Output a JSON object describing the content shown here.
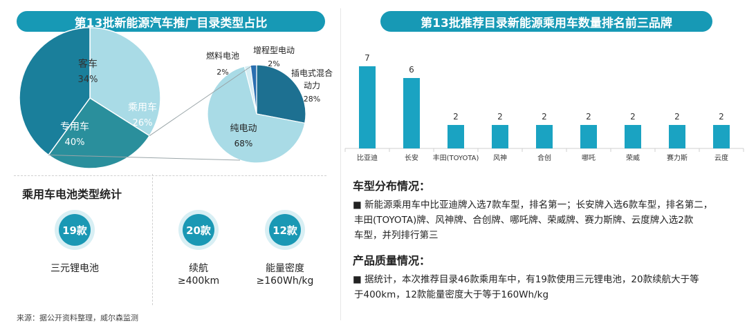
{
  "left_banner": "第13批新能源汽车推广目录类型占比",
  "right_banner": "第13批推荐目录新能源乘用车数量排名前三品牌",
  "battery_section": {
    "title": "乘用车电池类型统计",
    "items": [
      {
        "count": "19款",
        "label_lines": [
          "三元锂电池"
        ]
      },
      {
        "count": "20款",
        "label_lines": [
          "续航",
          "≥400km"
        ]
      },
      {
        "count": "12款",
        "label_lines": [
          "能量密度",
          "≥160Wh/kg"
        ]
      }
    ]
  },
  "model_dist": {
    "title": "车型分布情况：",
    "lines": [
      "■ 新能源乘用车中比亚迪牌入选7款车型，排名第一；长安牌入选6款车型，排名第二，",
      "丰田(TOYOTA)牌、风神牌、合创牌、哪吒牌、荣威牌、赛力斯牌、云度牌入选2款",
      "车型，并列排行第三"
    ]
  },
  "quality": {
    "title": "产品质量情况：",
    "lines": [
      "■ 据统计，本次推荐目录46款乘用车中，有19款使用三元锂电池，20款续航大于等",
      "于400km，12款能量密度大于等于160Wh/kg"
    ]
  },
  "source": "来源：据公开资料整理，威尔森监测",
  "colors": {
    "banner": "#1799b5",
    "teal_dark": "#1a7f9b",
    "teal_mid": "#2a8f9c",
    "teal_light": "#a9dbe6",
    "bar": "#1aa3c2",
    "circle": "#1a98b4"
  },
  "chart_data": [
    {
      "type": "pie",
      "title": "第13批新能源汽车推广目录类型占比",
      "slices": [
        {
          "label": "客车",
          "value": 34,
          "display": "34%"
        },
        {
          "label": "乘用车",
          "value": 26,
          "display": "26%"
        },
        {
          "label": "专用车",
          "value": 40,
          "display": "40%"
        }
      ],
      "breakdown_of": "乘用车",
      "breakdown": [
        {
          "label": "插电式混合动力",
          "label_lines": [
            "插电式混合",
            "动力"
          ],
          "value": 28,
          "display": "28%"
        },
        {
          "label": "纯电动",
          "value": 68,
          "display": "68%"
        },
        {
          "label": "燃料电池",
          "value": 2,
          "display": "2%"
        },
        {
          "label": "增程型电动",
          "value": 2,
          "display": "2%"
        }
      ]
    },
    {
      "type": "bar",
      "title": "第13批推荐目录新能源乘用车数量排名前三品牌",
      "categories": [
        "比亚迪",
        "长安",
        "丰田(TOYOTA)",
        "风神",
        "合创",
        "哪吒",
        "荣威",
        "赛力斯",
        "云度"
      ],
      "values": [
        7,
        6,
        2,
        2,
        2,
        2,
        2,
        2,
        2
      ],
      "ylim": [
        0,
        7
      ]
    }
  ]
}
